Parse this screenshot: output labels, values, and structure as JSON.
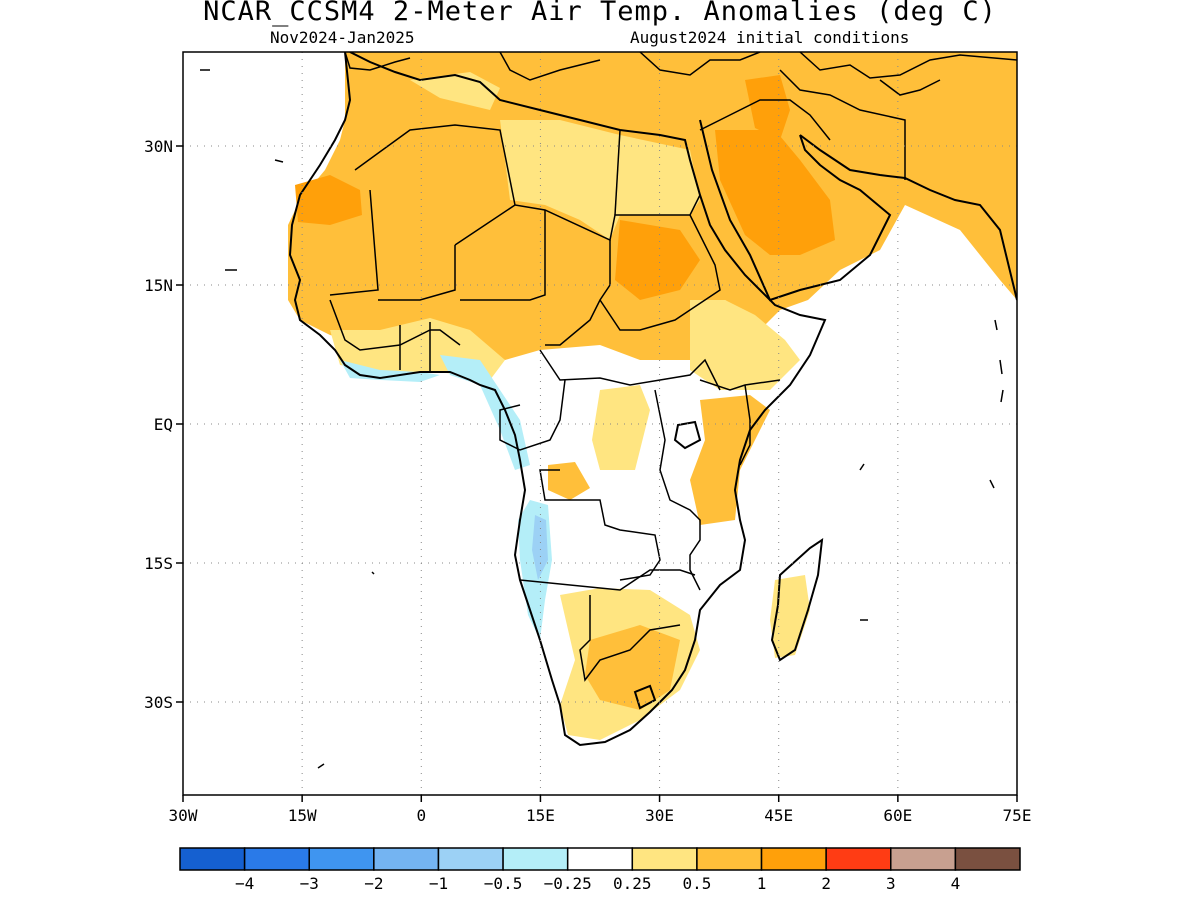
{
  "header": {
    "title": "NCAR_CCSM4 2-Meter Air Temp. Anomalies (deg C)",
    "left_subtitle": "Nov2024-Jan2025",
    "right_subtitle": "August2024 initial conditions"
  },
  "axes": {
    "lon_ticks": [
      {
        "value": -30,
        "label": "30W"
      },
      {
        "value": -15,
        "label": "15W"
      },
      {
        "value": 0,
        "label": "0"
      },
      {
        "value": 15,
        "label": "15E"
      },
      {
        "value": 30,
        "label": "30E"
      },
      {
        "value": 45,
        "label": "45E"
      },
      {
        "value": 60,
        "label": "60E"
      },
      {
        "value": 75,
        "label": "75E"
      }
    ],
    "lat_ticks": [
      {
        "value": 30,
        "label": "30N"
      },
      {
        "value": 15,
        "label": "15N"
      },
      {
        "value": 0,
        "label": "EQ"
      },
      {
        "value": -15,
        "label": "15S"
      },
      {
        "value": -30,
        "label": "30S"
      }
    ],
    "lon_range": [
      -30,
      75
    ],
    "lat_range": [
      -40,
      40
    ],
    "grid": "dotted"
  },
  "colorbar": {
    "bins": [
      {
        "color": "#1560d0"
      },
      {
        "color": "#2a7ae8"
      },
      {
        "color": "#3f95f0"
      },
      {
        "color": "#74b4f2"
      },
      {
        "color": "#9cd1f5"
      },
      {
        "color": "#b4eef8"
      },
      {
        "color": "#ffffff"
      },
      {
        "color": "#ffe581"
      },
      {
        "color": "#ffbf3a"
      },
      {
        "color": "#ffa00a"
      },
      {
        "color": "#ff3c14"
      },
      {
        "color": "#c8a090"
      },
      {
        "color": "#7a5040"
      }
    ],
    "labels": [
      "−4",
      "−3",
      "−2",
      "−1",
      "−0.5",
      "−0.25",
      "0.25",
      "0.5",
      "1",
      "2",
      "3",
      "4"
    ]
  },
  "colors": {
    "neg_strong": "#74b4f2",
    "neg_weak": "#b4eef8",
    "pos_weak": "#ffe581",
    "pos_mid": "#ffbf3a",
    "pos_strong": "#ffa00a"
  }
}
